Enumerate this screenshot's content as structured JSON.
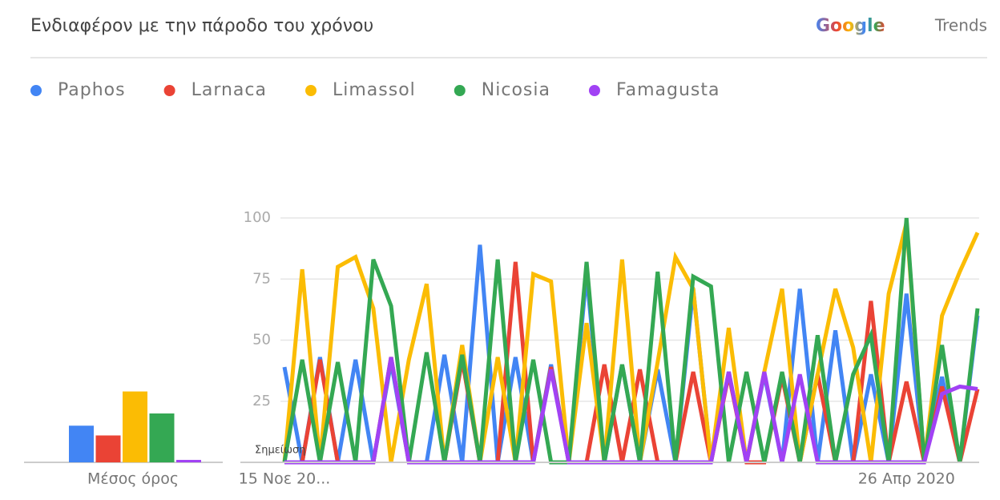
{
  "header": {
    "title": "Ενδιαφέρον με την πάροδο του χρόνου",
    "brand_google": "Google",
    "brand_trends": "Trends"
  },
  "chart_data": [
    {
      "type": "bar",
      "xlabel": "Μέσος όρος",
      "values": [
        15,
        11,
        29,
        20,
        1
      ],
      "colors": [
        "#4285f4",
        "#ea4335",
        "#fbbc04",
        "#34a853",
        "#a142f4"
      ],
      "ylim": [
        0,
        100
      ]
    },
    {
      "type": "line",
      "annotation": "Σημείωση",
      "legend": "top-left",
      "grid": true,
      "categories": [
        "15 Νοε 20...",
        null,
        null,
        null,
        null,
        null,
        null,
        null,
        null,
        null,
        null,
        null,
        null,
        null,
        null,
        null,
        null,
        null,
        null,
        null,
        null,
        null,
        null,
        null,
        null,
        null,
        null,
        null,
        null,
        null,
        null,
        null,
        null,
        null,
        null,
        "26 Απρ 2020",
        null,
        null,
        null,
        null
      ],
      "ylim": [
        0,
        100
      ],
      "yticks": [
        25,
        50,
        75,
        100
      ],
      "series": [
        {
          "name": "Paphos",
          "color": "#4285f4",
          "values": [
            39,
            0,
            43,
            0,
            42,
            0,
            41,
            0,
            0,
            44,
            0,
            89,
            0,
            43,
            0,
            40,
            0,
            77,
            0,
            40,
            0,
            38,
            0,
            71,
            0,
            37,
            0,
            36,
            0,
            71,
            0,
            54,
            0,
            36,
            0,
            69,
            0,
            35,
            0,
            60
          ]
        },
        {
          "name": "Larnaca",
          "color": "#ea4335",
          "values": [
            0,
            0,
            42,
            0,
            0,
            0,
            43,
            0,
            0,
            0,
            42,
            0,
            0,
            82,
            0,
            39,
            0,
            0,
            40,
            0,
            38,
            0,
            0,
            37,
            0,
            36,
            0,
            0,
            35,
            0,
            36,
            0,
            0,
            66,
            0,
            33,
            0,
            31,
            0,
            30
          ]
        },
        {
          "name": "Limassol",
          "color": "#fbbc04",
          "values": [
            0,
            79,
            0,
            80,
            84,
            63,
            0,
            42,
            73,
            0,
            48,
            0,
            43,
            0,
            77,
            74,
            0,
            57,
            0,
            83,
            0,
            41,
            84,
            71,
            0,
            55,
            0,
            37,
            71,
            0,
            36,
            71,
            47,
            0,
            69,
            98,
            0,
            60,
            78,
            94
          ]
        },
        {
          "name": "Nicosia",
          "color": "#34a853",
          "values": [
            0,
            42,
            0,
            41,
            0,
            83,
            64,
            0,
            45,
            0,
            44,
            0,
            83,
            0,
            42,
            0,
            0,
            82,
            0,
            40,
            0,
            78,
            0,
            76,
            72,
            0,
            37,
            0,
            37,
            0,
            52,
            0,
            36,
            52,
            0,
            100,
            0,
            48,
            0,
            63
          ]
        },
        {
          "name": "Famagusta",
          "color": "#a142f4",
          "values": [
            0,
            0,
            0,
            0,
            0,
            0,
            43,
            0,
            0,
            0,
            0,
            0,
            0,
            0,
            0,
            38,
            0,
            0,
            0,
            0,
            0,
            0,
            0,
            0,
            0,
            37,
            0,
            37,
            0,
            36,
            0,
            0,
            0,
            0,
            0,
            0,
            0,
            28,
            31,
            30
          ]
        }
      ]
    }
  ]
}
